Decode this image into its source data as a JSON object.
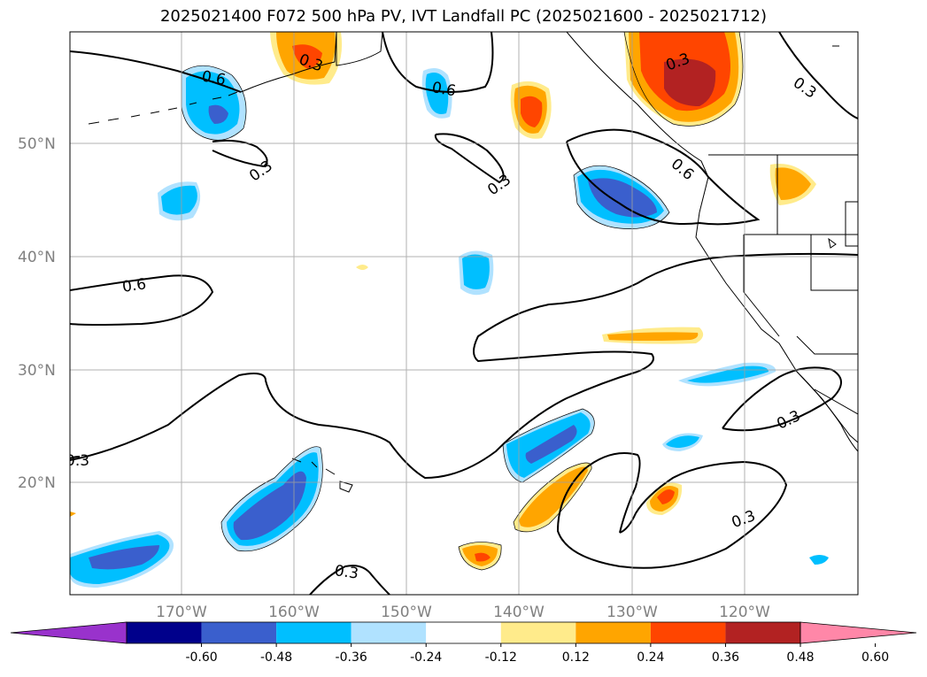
{
  "title": "2025021400 F072 500 hPa PV, IVT Landfall PC (2025021600 - 2025021712)",
  "lat_labels": [
    "50°N",
    "40°N",
    "30°N",
    "20°N"
  ],
  "lon_labels": [
    "170°W",
    "160°W",
    "150°W",
    "140°W",
    "130°W",
    "120°W"
  ],
  "contour_labels": [
    "0.6",
    "0.3",
    "0.3",
    "0.6",
    "0.6",
    "0.6",
    "0.3",
    "0.3",
    "0.3",
    "0.3",
    "0.3",
    "0.3"
  ],
  "colorbar": {
    "ticks": [
      "-0.60",
      "-0.48",
      "-0.36",
      "-0.24",
      "-0.12",
      "0.12",
      "0.24",
      "0.36",
      "0.48",
      "0.60"
    ],
    "colors": [
      "#9932cc",
      "#00008b",
      "#3a5fcd",
      "#00bfff",
      "#b0e2ff",
      "#ffffff",
      "#ffeb8b",
      "#ffa500",
      "#ff4500",
      "#b22222",
      "#ff87a8"
    ]
  },
  "palette": {
    "neg_light": "#b0e2ff",
    "neg_mid": "#00bfff",
    "neg_dark": "#3a5fcd",
    "pos_light": "#ffeb8b",
    "pos_mid": "#ffa500",
    "pos_strong": "#ff4500",
    "pos_dark": "#b22222"
  }
}
